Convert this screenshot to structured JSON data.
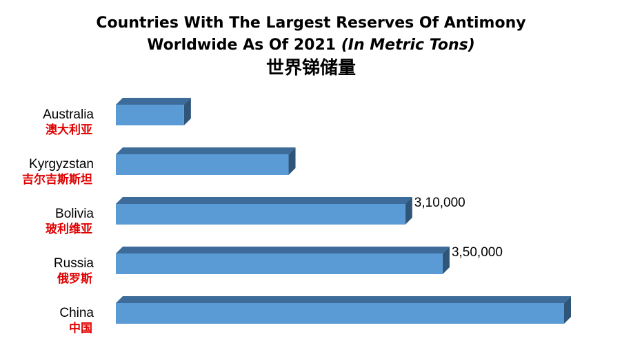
{
  "title": {
    "line1": "Countries With The Largest Reserves Of Antimony",
    "line2_main": "Worldwide As Of 2021 ",
    "line2_italic": "(In Metric Tons)",
    "subtitle_cn": "世界锑储量"
  },
  "colors": {
    "bar_front": "#5b9bd5",
    "bar_top": "#3e6c9a",
    "bar_side": "#2f5578",
    "category_cn": "#e00000"
  },
  "chart_data": {
    "type": "bar",
    "orientation": "horizontal",
    "style": "3d",
    "title": "Countries With The Largest Reserves Of Antimony Worldwide As Of 2021 (In Metric Tons)",
    "subtitle": "世界锑储量",
    "categories": [
      {
        "en": "Australia",
        "cn": "澳大利亚"
      },
      {
        "en": "Kyrgyzstan",
        "cn": "吉尔吉斯斯坦"
      },
      {
        "en": "Bolivia",
        "cn": "玻利维亚"
      },
      {
        "en": "Russia",
        "cn": "俄罗斯"
      },
      {
        "en": "China",
        "cn": "中国"
      }
    ],
    "values": [
      73000,
      185000,
      310000,
      350000,
      480000
    ],
    "data_labels": [
      "",
      "",
      "3,10,000",
      "3,50,000",
      ""
    ],
    "xlim": [
      0,
      480000
    ],
    "grid": false,
    "legend": "none"
  }
}
